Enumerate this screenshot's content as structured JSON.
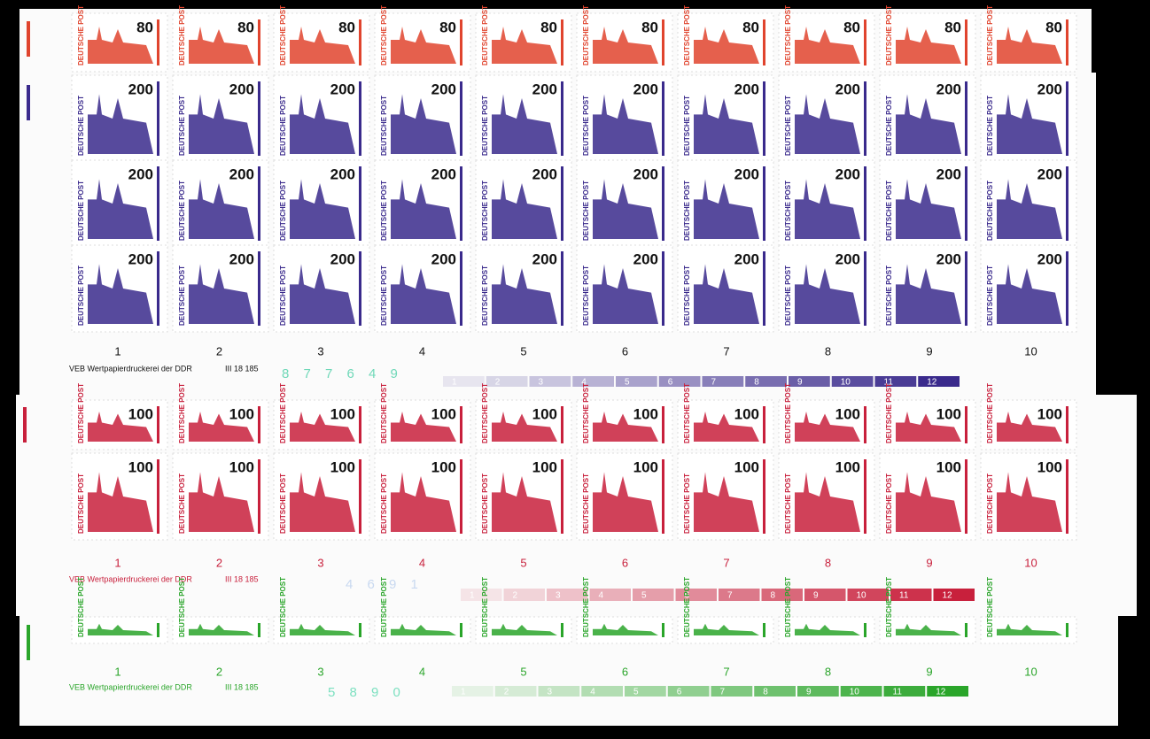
{
  "sheets": [
    {
      "value": "80",
      "country": "DEUTSCHE POST",
      "color": "#e0442e"
    },
    {
      "value": "200",
      "country": "DEUTSCHE POST",
      "color": "#3a2a8c",
      "column_numbers": [
        1,
        2,
        3,
        4,
        5,
        6,
        7,
        8,
        9,
        10
      ],
      "imprint": "VEB Wertpapierdruckerei der DDR",
      "plate": "III 18 185",
      "control_number": "8 7 7 6 4 9",
      "control_color": "#6fd8b8",
      "bar_numbers": [
        1,
        2,
        3,
        4,
        5,
        6,
        7,
        8,
        9,
        10,
        11,
        12
      ]
    },
    {
      "value": "100",
      "country": "DEUTSCHE POST",
      "color": "#c8203c",
      "column_numbers": [
        1,
        2,
        3,
        4,
        5,
        6,
        7,
        8,
        9,
        10
      ],
      "imprint": "VEB Wertpapierdruckerei der DDR",
      "plate": "III 18 185",
      "control_number": "4 6 9 1",
      "control_color": "#c8d8f0",
      "bar_numbers": [
        1,
        2,
        3,
        4,
        5,
        6,
        7,
        8,
        9,
        10,
        11,
        12
      ]
    },
    {
      "value": "",
      "country": "DEUTSCHE POST",
      "color": "#2aa52a",
      "column_numbers": [
        1,
        2,
        3,
        4,
        5,
        6,
        7,
        8,
        9,
        10
      ],
      "imprint": "VEB Wertpapierdruckerei der DDR",
      "plate": "III 18 185",
      "control_number": "5 8 9 0",
      "control_color": "#7ce0c0",
      "bar_numbers": [
        1,
        2,
        3,
        4,
        5,
        6,
        7,
        8,
        9,
        10,
        11,
        12
      ]
    }
  ]
}
